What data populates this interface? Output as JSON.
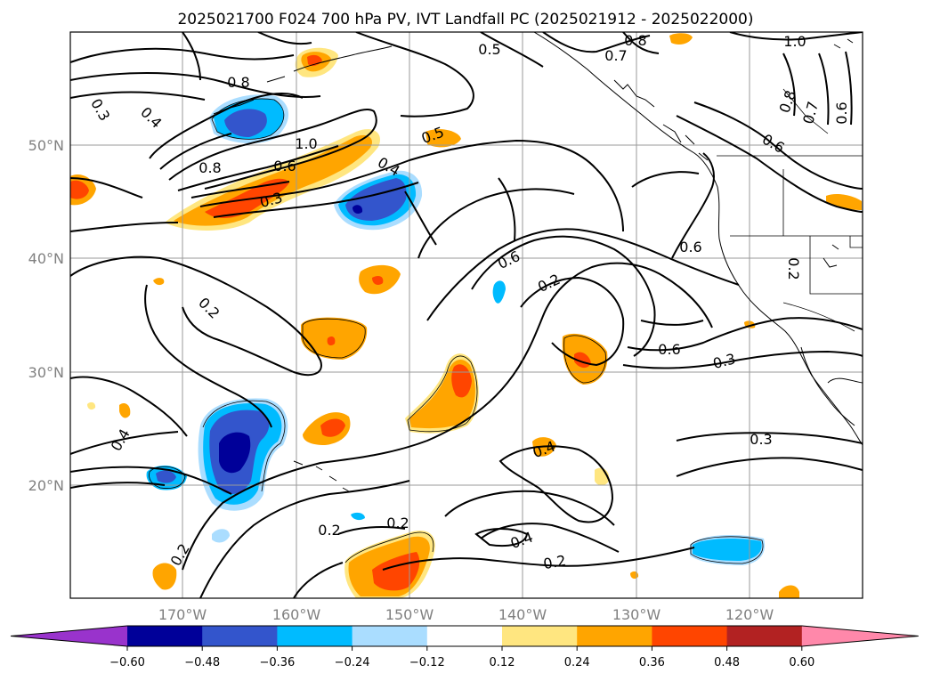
{
  "title": "2025021700 F024 700 hPa PV, IVT Landfall PC (2025021912 - 2025022000)",
  "lat_labels": [
    "50°N",
    "40°N",
    "30°N",
    "20°N"
  ],
  "lon_labels": [
    "170°W",
    "160°W",
    "150°W",
    "140°W",
    "130°W",
    "120°W"
  ],
  "contour_labels": [
    "0.8",
    "0.5",
    "0.7",
    "0.8",
    "1.0",
    "0.8",
    "0.7",
    "0.6",
    "0.3",
    "0.4",
    "1.0",
    "0.5",
    "0.6",
    "0.8",
    "0.6",
    "0.4",
    "0.3",
    "0.6",
    "0.2",
    "0.6",
    "0.2",
    "0.6",
    "0.3",
    "0.2",
    "0.4",
    "0.3",
    "0.4",
    "0.2",
    "0.2",
    "0.4",
    "0.2",
    "0.2"
  ],
  "colorbar": {
    "colors": [
      "#9933cc",
      "#000099",
      "#3355cc",
      "#00bbff",
      "#aaddff",
      "#ffffff",
      "#ffe680",
      "#ffa500",
      "#ff4500",
      "#b22222",
      "#ff88aa"
    ],
    "tick_labels": [
      "−0.60",
      "−0.48",
      "−0.36",
      "−0.24",
      "−0.12",
      "0.12",
      "0.24",
      "0.36",
      "0.48",
      "0.60"
    ]
  }
}
